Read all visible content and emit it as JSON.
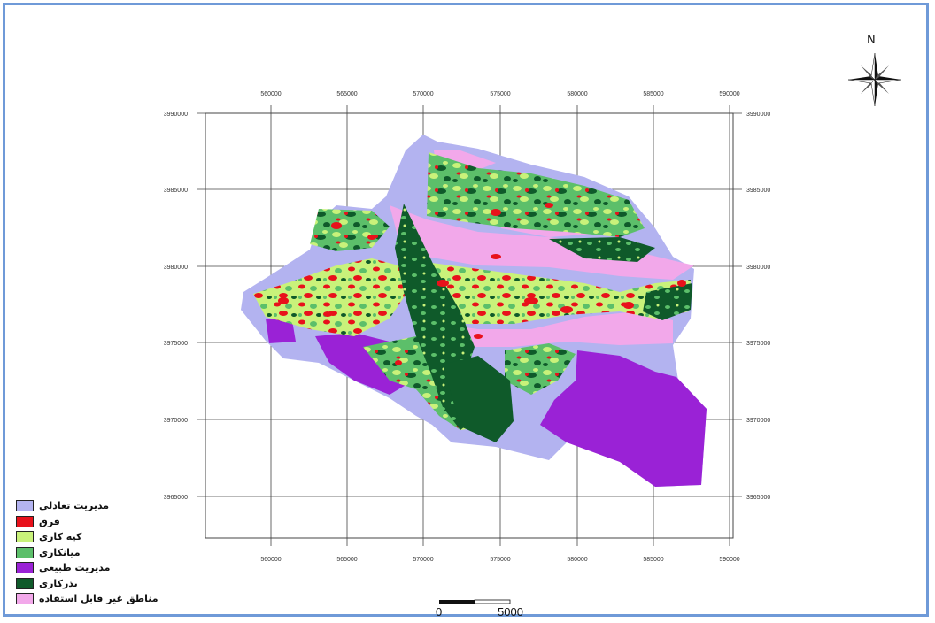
{
  "map": {
    "north_label": "N",
    "x_ticks": [
      "560000",
      "565000",
      "570000",
      "575000",
      "580000",
      "585000",
      "590000"
    ],
    "y_ticks": [
      "3990000",
      "3985000",
      "3980000",
      "3975000",
      "3970000",
      "3965000"
    ],
    "legend": [
      {
        "label": "مدیریت تعادلی",
        "color": "#b3b3f0"
      },
      {
        "label": "قرق",
        "color": "#e8111b"
      },
      {
        "label": "کپه کاری",
        "color": "#c9f27a"
      },
      {
        "label": "میانکاری",
        "color": "#5cbf6a"
      },
      {
        "label": "مدیریت طبیعی",
        "color": "#9a22d6"
      },
      {
        "label": "بذرکاری",
        "color": "#0f5a2a"
      },
      {
        "label": "مناطق غیر قابل استفاده",
        "color": "#f2a8ea"
      }
    ],
    "scale_bar": {
      "start": "0",
      "end": "5000"
    }
  }
}
